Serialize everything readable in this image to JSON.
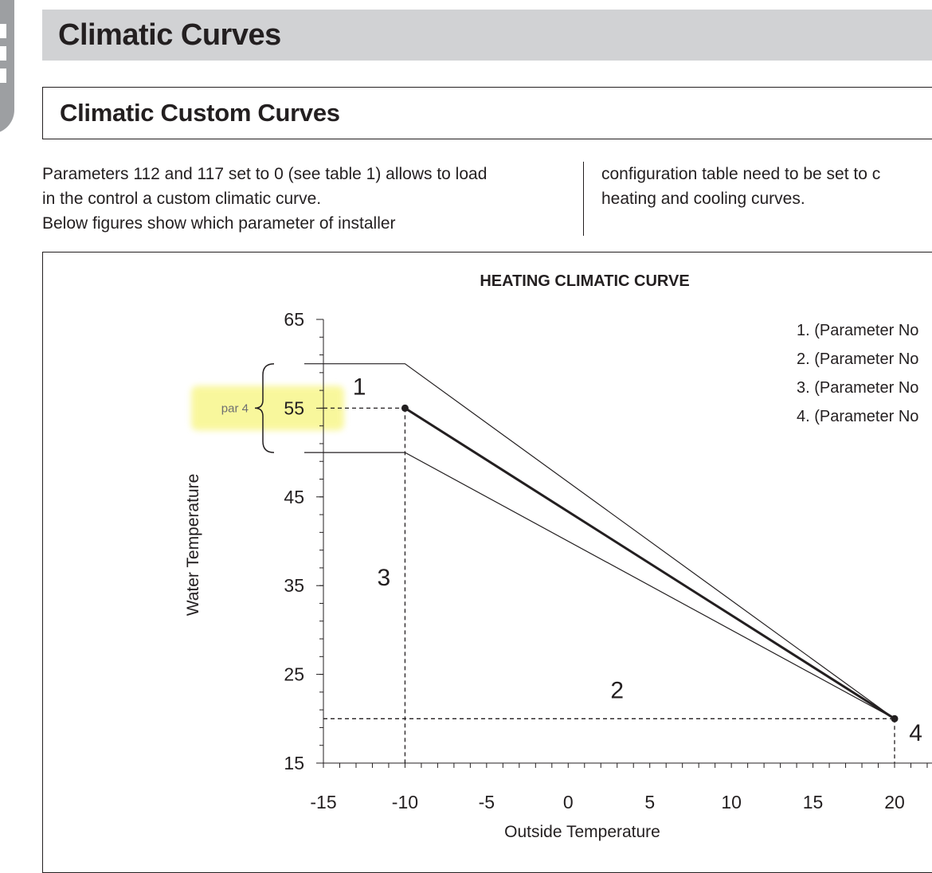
{
  "page": {
    "title": "Climatic Curves",
    "section_title": "Climatic Custom Curves",
    "left_lines": [
      "Parameters 112 and 117 set to 0 (see table 1) allows to load",
      "in the control a custom climatic curve.",
      "Below figures show which parameter of installer"
    ],
    "right_lines": [
      "configuration table need to be set to c",
      "heating and cooling curves."
    ],
    "colors": {
      "title_bar": "#d1d2d4",
      "side_tab": "#9d9fa2",
      "highlight": "#f4f14d",
      "text": "#231f20"
    }
  },
  "chart_data": {
    "type": "line",
    "title": "HEATING CLIMATIC CURVE",
    "xlabel": "Outside Temperature",
    "ylabel": "Water Temperature",
    "xlim": [
      -15,
      20
    ],
    "ylim": [
      15,
      65
    ],
    "x_ticks": [
      -15,
      -10,
      -5,
      0,
      5,
      10,
      15,
      20
    ],
    "y_ticks": [
      15,
      25,
      35,
      45,
      55,
      65
    ],
    "series": [
      {
        "x": [
          -15,
          -10,
          20
        ],
        "y": [
          60,
          60,
          20
        ]
      },
      {
        "x": [
          -10,
          20
        ],
        "y": [
          55,
          20
        ]
      },
      {
        "x": [
          -15,
          -10,
          20
        ],
        "y": [
          50,
          50,
          20
        ]
      }
    ],
    "points": [
      {
        "x": -10,
        "y": 55
      },
      {
        "x": 20,
        "y": 20
      }
    ],
    "guides": [
      {
        "x": [
          -10,
          -10
        ],
        "y": [
          55,
          15
        ]
      },
      {
        "x": [
          -15,
          20
        ],
        "y": [
          20,
          20
        ]
      },
      {
        "x": [
          20,
          20
        ],
        "y": [
          20,
          15
        ]
      },
      {
        "x": [
          -15,
          -10
        ],
        "y": [
          55,
          55
        ]
      }
    ],
    "markers": [
      {
        "label": "1",
        "x": -12.8,
        "y": 56.5
      },
      {
        "label": "2",
        "x": 3,
        "y": 22.3
      },
      {
        "label": "3",
        "x": -11.3,
        "y": 35
      },
      {
        "label": "4",
        "x": 21.3,
        "y": 17.5
      }
    ],
    "par_label": "par 4",
    "band_y": [
      50,
      60
    ],
    "legend_items": [
      "1. (Parameter No",
      "2. (Parameter No",
      "3. (Parameter No",
      "4. (Parameter No"
    ]
  }
}
